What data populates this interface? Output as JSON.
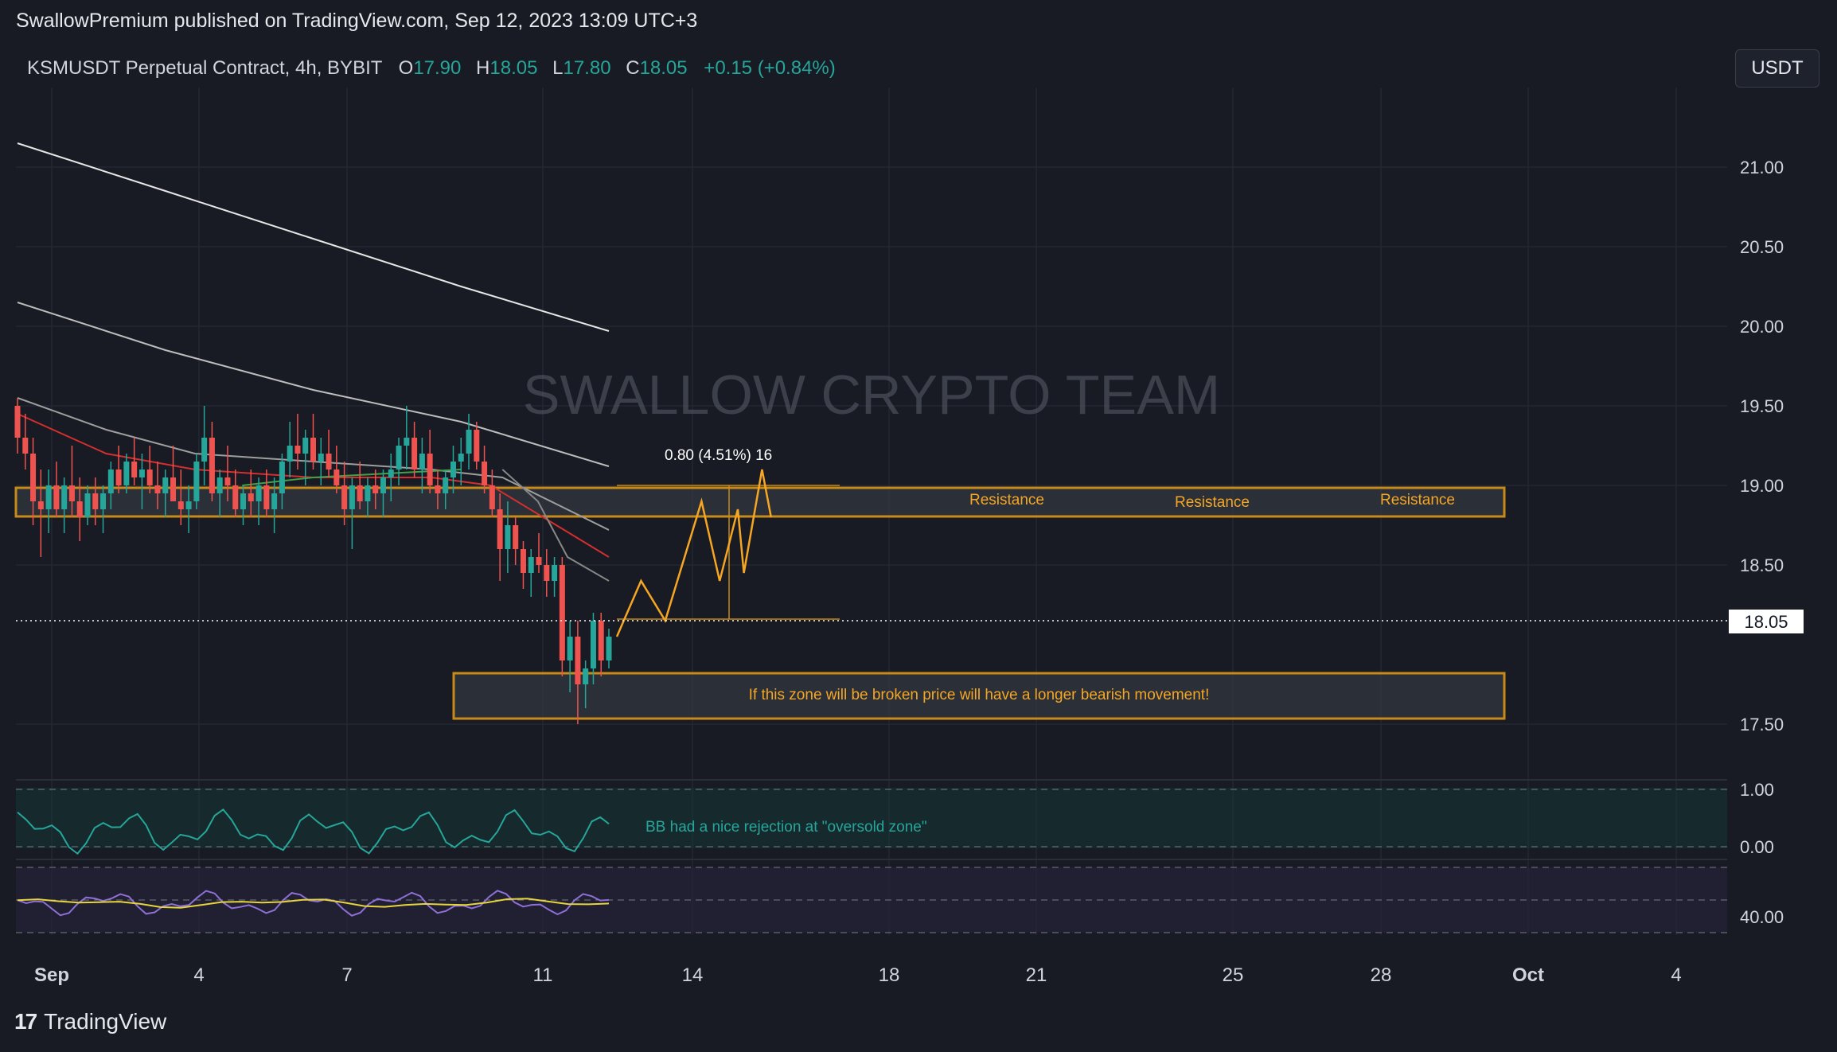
{
  "header": {
    "published": "SwallowPremium published on TradingView.com, Sep 12, 2023 13:09 UTC+3"
  },
  "legend": {
    "symbol": "KSMUSDT Perpetual Contract, 4h, BYBIT",
    "o_label": "O",
    "o_value": "17.90",
    "h_label": "H",
    "h_value": "18.05",
    "l_label": "L",
    "l_value": "17.80",
    "c_label": "C",
    "c_value": "18.05",
    "change": "+0.15 (+0.84%)"
  },
  "currency_button": "USDT",
  "watermark": "SWALLOW CRYPTO TEAM",
  "annotations": {
    "measure": "0.80 (4.51%) 16",
    "resistance_1": "Resistance",
    "resistance_2": "Resistance",
    "resistance_3": "Resistance",
    "support_zone": "If this zone will be broken price will have a longer bearish movement!",
    "bb_note": "BB had a nice rejection at \"oversold zone\""
  },
  "current_price": "18.05",
  "colors": {
    "background": "#181b23",
    "bull": "#26a69a",
    "bear": "#ef5350",
    "zone": "#c88a19",
    "projection": "#f6a623"
  },
  "footer": {
    "brand": "TradingView"
  },
  "chart_data": {
    "type": "candlestick",
    "timeframe": "4h",
    "y_ticks": [
      "21.00",
      "20.50",
      "20.00",
      "19.50",
      "19.00",
      "18.50",
      "17.50"
    ],
    "ylim": [
      17.3,
      21.5
    ],
    "x_ticks": [
      "Sep",
      "4",
      "7",
      "11",
      "14",
      "18",
      "21",
      "25",
      "28",
      "Oct",
      "4"
    ],
    "resistance_zone": [
      18.7,
      18.88
    ],
    "support_zone": [
      17.45,
      17.73
    ],
    "candles": [
      [
        19.5,
        19.55,
        19.2,
        19.3
      ],
      [
        19.3,
        19.45,
        19.1,
        19.2
      ],
      [
        19.2,
        19.3,
        18.75,
        18.9
      ],
      [
        18.9,
        19.1,
        18.55,
        18.85
      ],
      [
        18.85,
        19.1,
        18.7,
        19.0
      ],
      [
        19.0,
        19.15,
        18.8,
        18.85
      ],
      [
        18.85,
        19.05,
        18.7,
        19.0
      ],
      [
        19.0,
        19.25,
        18.8,
        18.9
      ],
      [
        18.9,
        19.05,
        18.65,
        18.8
      ],
      [
        18.8,
        19.0,
        18.75,
        18.95
      ],
      [
        18.95,
        19.05,
        18.75,
        18.85
      ],
      [
        18.85,
        19.0,
        18.7,
        18.95
      ],
      [
        18.95,
        19.15,
        18.85,
        19.1
      ],
      [
        19.1,
        19.25,
        18.95,
        19.0
      ],
      [
        19.0,
        19.2,
        18.95,
        19.15
      ],
      [
        19.15,
        19.3,
        19.0,
        19.05
      ],
      [
        19.05,
        19.2,
        18.85,
        19.1
      ],
      [
        19.1,
        19.25,
        18.95,
        19.0
      ],
      [
        19.0,
        19.15,
        18.85,
        18.95
      ],
      [
        18.95,
        19.1,
        18.8,
        19.05
      ],
      [
        19.05,
        19.25,
        18.9,
        18.9
      ],
      [
        18.9,
        19.1,
        18.75,
        18.85
      ],
      [
        18.85,
        19.0,
        18.7,
        18.9
      ],
      [
        18.9,
        19.2,
        18.85,
        19.15
      ],
      [
        19.15,
        19.5,
        19.0,
        19.3
      ],
      [
        19.3,
        19.4,
        18.9,
        18.95
      ],
      [
        18.95,
        19.1,
        18.8,
        19.05
      ],
      [
        19.05,
        19.25,
        18.9,
        19.0
      ],
      [
        19.0,
        19.1,
        18.8,
        18.85
      ],
      [
        18.85,
        19.0,
        18.75,
        18.95
      ],
      [
        18.95,
        19.1,
        18.8,
        18.9
      ],
      [
        18.9,
        19.05,
        18.75,
        19.0
      ],
      [
        19.0,
        19.1,
        18.8,
        18.85
      ],
      [
        18.85,
        19.05,
        18.7,
        18.95
      ],
      [
        18.95,
        19.2,
        18.85,
        19.15
      ],
      [
        19.15,
        19.4,
        19.05,
        19.25
      ],
      [
        19.25,
        19.45,
        19.1,
        19.2
      ],
      [
        19.2,
        19.35,
        19.0,
        19.3
      ],
      [
        19.3,
        19.45,
        19.1,
        19.15
      ],
      [
        19.15,
        19.3,
        19.0,
        19.2
      ],
      [
        19.2,
        19.35,
        19.05,
        19.1
      ],
      [
        19.1,
        19.25,
        18.95,
        19.0
      ],
      [
        19.0,
        19.15,
        18.75,
        18.85
      ],
      [
        18.85,
        19.05,
        18.6,
        19.0
      ],
      [
        19.0,
        19.15,
        18.85,
        18.9
      ],
      [
        18.9,
        19.05,
        18.8,
        19.0
      ],
      [
        19.0,
        19.1,
        18.85,
        18.95
      ],
      [
        18.95,
        19.1,
        18.8,
        19.05
      ],
      [
        19.05,
        19.2,
        18.9,
        19.1
      ],
      [
        19.1,
        19.3,
        19.0,
        19.25
      ],
      [
        19.25,
        19.5,
        19.1,
        19.3
      ],
      [
        19.3,
        19.4,
        19.05,
        19.1
      ],
      [
        19.1,
        19.3,
        18.95,
        19.2
      ],
      [
        19.2,
        19.35,
        18.95,
        19.0
      ],
      [
        19.0,
        19.1,
        18.85,
        18.95
      ],
      [
        18.95,
        19.1,
        18.85,
        19.05
      ],
      [
        19.05,
        19.25,
        18.95,
        19.15
      ],
      [
        19.15,
        19.3,
        19.0,
        19.2
      ],
      [
        19.2,
        19.45,
        19.1,
        19.35
      ],
      [
        19.35,
        19.4,
        19.1,
        19.15
      ],
      [
        19.15,
        19.25,
        18.95,
        19.0
      ],
      [
        19.0,
        19.1,
        18.8,
        18.85
      ],
      [
        18.85,
        18.95,
        18.4,
        18.6
      ],
      [
        18.6,
        18.9,
        18.45,
        18.75
      ],
      [
        18.75,
        18.8,
        18.5,
        18.6
      ],
      [
        18.6,
        18.65,
        18.35,
        18.45
      ],
      [
        18.45,
        18.6,
        18.3,
        18.55
      ],
      [
        18.55,
        18.7,
        18.45,
        18.5
      ],
      [
        18.5,
        18.6,
        18.3,
        18.4
      ],
      [
        18.4,
        18.55,
        18.3,
        18.5
      ],
      [
        18.5,
        18.55,
        17.8,
        17.9
      ],
      [
        17.9,
        18.15,
        17.7,
        18.05
      ],
      [
        18.05,
        18.15,
        17.5,
        17.75
      ],
      [
        17.75,
        17.9,
        17.6,
        17.85
      ],
      [
        17.85,
        18.2,
        17.75,
        18.15
      ],
      [
        18.15,
        18.2,
        17.8,
        17.9
      ],
      [
        17.9,
        18.1,
        17.85,
        18.05
      ]
    ],
    "moving_averages": [
      {
        "color": "#e6e6e6",
        "points": [
          [
            0,
            21.15
          ],
          [
            0.25,
            20.85
          ],
          [
            0.5,
            20.55
          ],
          [
            0.75,
            20.25
          ],
          [
            1,
            19.97
          ]
        ]
      },
      {
        "color": "#bdbdbd",
        "points": [
          [
            0,
            20.15
          ],
          [
            0.25,
            19.85
          ],
          [
            0.5,
            19.6
          ],
          [
            0.75,
            19.4
          ],
          [
            1,
            19.12
          ]
        ]
      },
      {
        "color": "#9e9e9e",
        "points": [
          [
            0,
            19.55
          ],
          [
            0.15,
            19.35
          ],
          [
            0.3,
            19.2
          ],
          [
            0.5,
            19.15
          ],
          [
            0.7,
            19.1
          ],
          [
            0.82,
            19.05
          ],
          [
            1,
            18.72
          ]
        ]
      },
      {
        "color": "#d32f2f",
        "points": [
          [
            0,
            19.45
          ],
          [
            0.15,
            19.2
          ],
          [
            0.3,
            19.1
          ],
          [
            0.5,
            19.05
          ],
          [
            0.7,
            19.05
          ],
          [
            0.8,
            19.0
          ],
          [
            1,
            18.55
          ]
        ]
      },
      {
        "color": "#888888",
        "points": [
          [
            0.82,
            19.1
          ],
          [
            0.88,
            18.9
          ],
          [
            0.93,
            18.55
          ],
          [
            1,
            18.4
          ]
        ]
      },
      {
        "color": "#43a047",
        "points": [
          [
            0.38,
            19.0
          ],
          [
            0.5,
            19.05
          ],
          [
            0.65,
            19.08
          ],
          [
            0.75,
            19.1
          ]
        ]
      }
    ],
    "projection_path": [
      [
        18.05,
        0
      ],
      [
        18.4,
        0.8
      ],
      [
        18.15,
        1.6
      ],
      [
        18.9,
        2.8
      ],
      [
        18.4,
        3.4
      ],
      [
        18.85,
        4.0
      ],
      [
        18.45,
        4.2
      ],
      [
        19.1,
        4.8
      ],
      [
        18.8,
        5.1
      ]
    ],
    "bb_percent": {
      "ticks": [
        "1.00",
        "0.00"
      ]
    },
    "rsi": {
      "ticks": [
        "40.00"
      ]
    }
  }
}
